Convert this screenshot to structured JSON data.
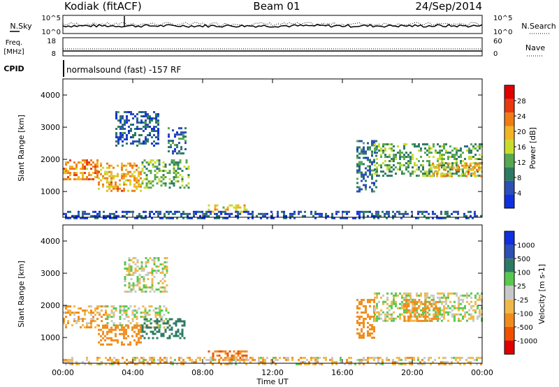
{
  "header": {
    "station": "Kodiak (fitACF)",
    "beam": "Beam 01",
    "date": "24/Sep/2014"
  },
  "noise_panel": {
    "left_label": "N.Sky",
    "right_label": "N.Search",
    "left_ticks": [
      "10^5",
      "10^0"
    ],
    "right_ticks": [
      "10^5",
      "10^0"
    ]
  },
  "freq_panel": {
    "left_label_line1": "Freq.",
    "left_label_line2": "[MHz]",
    "right_label": "Nave",
    "left_ticks": [
      "18",
      "8"
    ],
    "right_ticks": [
      "60",
      "0"
    ]
  },
  "cpid": {
    "label": "CPID",
    "text": "normalsound (fast) -157 RF"
  },
  "colors": {
    "power_scale": [
      "#1030e0",
      "#2e4fb4",
      "#2d7a64",
      "#58a850",
      "#c8dc2c",
      "#f0b424",
      "#f07c14",
      "#e83810",
      "#e00000"
    ],
    "velocity_scale": [
      "#e00000",
      "#f05000",
      "#f08c1c",
      "#f0b848",
      "#c8c8c8",
      "#58c850",
      "#2d7a64",
      "#2e4fb4",
      "#1030e0"
    ]
  },
  "chart_data": [
    {
      "type": "heatmap",
      "name": "power",
      "ylabel": "Slant Range [km]",
      "yticks": [
        1000,
        2000,
        3000,
        4000
      ],
      "ylim": [
        200,
        4500
      ],
      "colorbar_label": "Power [dB]",
      "colorbar_ticks": [
        4,
        8,
        12,
        16,
        20,
        24,
        28
      ],
      "colorbar_range": [
        0,
        32
      ],
      "regions": [
        {
          "t0": 0.0,
          "t1": 2.0,
          "r0": 1350,
          "r1": 2000,
          "value": 22
        },
        {
          "t0": 2.0,
          "t1": 4.5,
          "r0": 1000,
          "r1": 1900,
          "value": 20
        },
        {
          "t0": 4.5,
          "t1": 7.2,
          "r0": 1100,
          "r1": 2000,
          "value": 12
        },
        {
          "t0": 6.0,
          "t1": 7.0,
          "r0": 2200,
          "r1": 3000,
          "value": 8
        },
        {
          "t0": 3.0,
          "t1": 5.5,
          "r0": 2400,
          "r1": 3500,
          "value": 6
        },
        {
          "t0": 8.3,
          "t1": 10.5,
          "r0": 300,
          "r1": 600,
          "value": 18
        },
        {
          "t0": 16.8,
          "t1": 18.0,
          "r0": 1000,
          "r1": 2600,
          "value": 8
        },
        {
          "t0": 17.8,
          "t1": 24.0,
          "r0": 1500,
          "r1": 2500,
          "value": 12
        },
        {
          "t0": 21.0,
          "t1": 24.0,
          "r0": 1500,
          "r1": 1900,
          "value": 20
        },
        {
          "t0": 0.0,
          "t1": 24.0,
          "r0": 200,
          "r1": 400,
          "value": 5
        }
      ]
    },
    {
      "type": "heatmap",
      "name": "velocity",
      "ylabel": "Slant Range [km]",
      "yticks": [
        1000,
        2000,
        3000,
        4000
      ],
      "ylim": [
        200,
        4500
      ],
      "colorbar_label": "Velocity [m s-1]",
      "colorbar_ticks": [
        1000,
        500,
        100,
        25,
        -25,
        -100,
        -500,
        -1000
      ],
      "regions": [
        {
          "t0": 0.0,
          "t1": 2.5,
          "r0": 1300,
          "r1": 2000,
          "value": -100
        },
        {
          "t0": 2.5,
          "t1": 6.0,
          "r0": 1300,
          "r1": 2000,
          "value": 0
        },
        {
          "t0": 2.0,
          "t1": 4.5,
          "r0": 800,
          "r1": 1400,
          "value": -300
        },
        {
          "t0": 4.5,
          "t1": 7.0,
          "r0": 1000,
          "r1": 1600,
          "value": 300
        },
        {
          "t0": 3.5,
          "t1": 6.0,
          "r0": 2400,
          "r1": 3500,
          "value": 0
        },
        {
          "t0": 8.3,
          "t1": 10.5,
          "r0": 300,
          "r1": 600,
          "value": -500
        },
        {
          "t0": 16.8,
          "t1": 17.8,
          "r0": 1000,
          "r1": 2200,
          "value": -300
        },
        {
          "t0": 17.8,
          "t1": 24.0,
          "r0": 1500,
          "r1": 2400,
          "value": 0
        },
        {
          "t0": 19.5,
          "t1": 21.5,
          "r0": 1500,
          "r1": 2200,
          "value": -200
        },
        {
          "t0": 0.0,
          "t1": 24.0,
          "r0": 200,
          "r1": 400,
          "value": -60
        }
      ]
    }
  ],
  "xaxis": {
    "label": "Time UT",
    "ticks": [
      "00:00",
      "04:00",
      "08:00",
      "12:00",
      "16:00",
      "20:00",
      "00:00"
    ]
  }
}
